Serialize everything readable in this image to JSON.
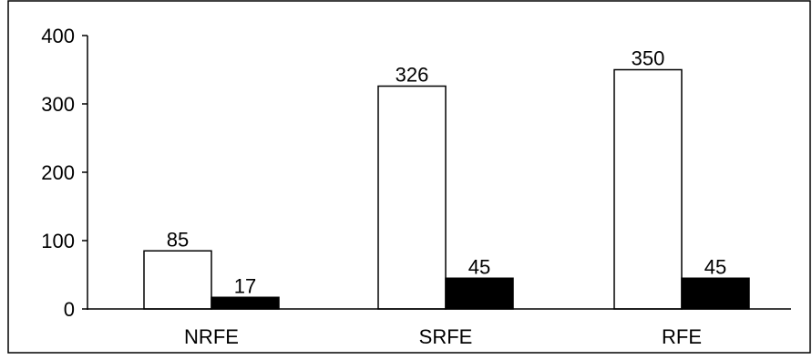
{
  "chart_data": {
    "type": "bar",
    "categories": [
      "NRFE",
      "SRFE",
      "RFE"
    ],
    "series": [
      {
        "values": [
          85,
          326,
          350
        ],
        "color": "#ffffff"
      },
      {
        "values": [
          17,
          45,
          45
        ],
        "color": "#000000"
      }
    ],
    "y_ticks": [
      "0",
      "100",
      "200",
      "300",
      "400"
    ],
    "ylim": [
      0,
      400
    ],
    "grid": false,
    "legend": "none"
  }
}
